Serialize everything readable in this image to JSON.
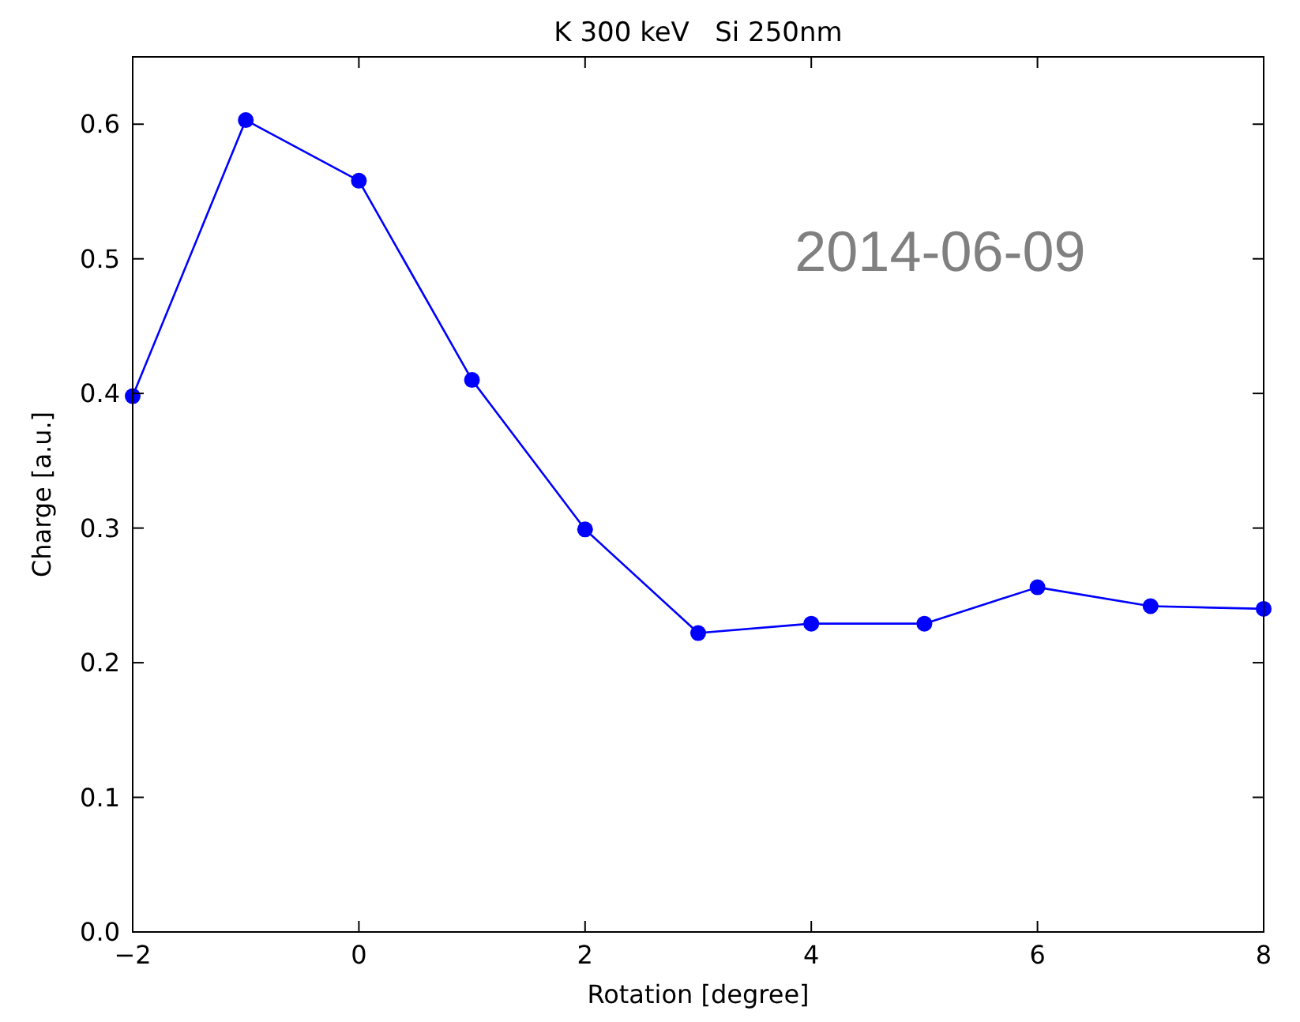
{
  "chart_data": {
    "type": "line",
    "title": "K 300 keV   Si 250nm",
    "xlabel": "Rotation [degree]",
    "ylabel": "Charge [a.u.]",
    "x": [
      -2,
      -1,
      0,
      1,
      2,
      3,
      4,
      5,
      6,
      7,
      8
    ],
    "series": [
      {
        "color": "#0000ff",
        "values": [
          0.398,
          0.603,
          0.558,
          0.41,
          0.299,
          0.222,
          0.229,
          0.229,
          0.256,
          0.242,
          0.24
        ]
      }
    ],
    "xlim": [
      -2,
      8
    ],
    "xticks": [
      {
        "value": -2,
        "label": "−2"
      },
      0,
      2,
      4,
      6,
      8
    ],
    "ylim": [
      0,
      0.65
    ],
    "yticks": [
      {
        "value": 0,
        "label": "0.0"
      },
      0.1,
      0.2,
      0.3,
      0.4,
      0.5,
      0.6
    ],
    "annotations": [
      "2014-06-09"
    ],
    "marker": "circle",
    "line_style": "solid",
    "grid": false
  }
}
